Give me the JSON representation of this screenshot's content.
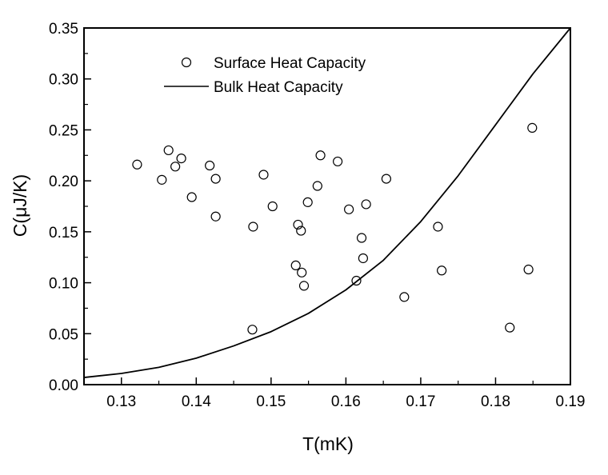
{
  "chart_data": {
    "type": "scatter",
    "xlabel": "T(mK)",
    "ylabel": "C(μJ/K)",
    "xlim": [
      0.125,
      0.19
    ],
    "ylim": [
      0.0,
      0.35
    ],
    "xticks": [
      "0.13",
      "0.14",
      "0.15",
      "0.16",
      "0.17",
      "0.18",
      "0.19"
    ],
    "yticks": [
      "0.00",
      "0.05",
      "0.10",
      "0.15",
      "0.20",
      "0.25",
      "0.30",
      "0.35"
    ],
    "grid": false,
    "legend_position": "top-left",
    "series": [
      {
        "name": "Surface Heat Capacity",
        "marker": "open-circle",
        "color": "#000000",
        "points": [
          {
            "x": 0.1321,
            "y": 0.216
          },
          {
            "x": 0.1354,
            "y": 0.201
          },
          {
            "x": 0.1363,
            "y": 0.23
          },
          {
            "x": 0.1372,
            "y": 0.214
          },
          {
            "x": 0.138,
            "y": 0.222
          },
          {
            "x": 0.1394,
            "y": 0.184
          },
          {
            "x": 0.1418,
            "y": 0.215
          },
          {
            "x": 0.1426,
            "y": 0.202
          },
          {
            "x": 0.1426,
            "y": 0.165
          },
          {
            "x": 0.1476,
            "y": 0.155
          },
          {
            "x": 0.1475,
            "y": 0.054
          },
          {
            "x": 0.149,
            "y": 0.206
          },
          {
            "x": 0.1502,
            "y": 0.175
          },
          {
            "x": 0.1536,
            "y": 0.157
          },
          {
            "x": 0.154,
            "y": 0.151
          },
          {
            "x": 0.1533,
            "y": 0.117
          },
          {
            "x": 0.1541,
            "y": 0.11
          },
          {
            "x": 0.1544,
            "y": 0.097
          },
          {
            "x": 0.1549,
            "y": 0.179
          },
          {
            "x": 0.1562,
            "y": 0.195
          },
          {
            "x": 0.1566,
            "y": 0.225
          },
          {
            "x": 0.1589,
            "y": 0.219
          },
          {
            "x": 0.1604,
            "y": 0.172
          },
          {
            "x": 0.1614,
            "y": 0.102
          },
          {
            "x": 0.1621,
            "y": 0.144
          },
          {
            "x": 0.1623,
            "y": 0.124
          },
          {
            "x": 0.1627,
            "y": 0.177
          },
          {
            "x": 0.1654,
            "y": 0.202
          },
          {
            "x": 0.1678,
            "y": 0.086
          },
          {
            "x": 0.1723,
            "y": 0.155
          },
          {
            "x": 0.1728,
            "y": 0.112
          },
          {
            "x": 0.1819,
            "y": 0.056
          },
          {
            "x": 0.1844,
            "y": 0.113
          },
          {
            "x": 0.1849,
            "y": 0.252
          }
        ]
      },
      {
        "name": "Bulk Heat Capacity",
        "marker": "line",
        "color": "#000000",
        "points": [
          {
            "x": 0.125,
            "y": 0.007
          },
          {
            "x": 0.13,
            "y": 0.011
          },
          {
            "x": 0.135,
            "y": 0.017
          },
          {
            "x": 0.14,
            "y": 0.026
          },
          {
            "x": 0.145,
            "y": 0.038
          },
          {
            "x": 0.15,
            "y": 0.052
          },
          {
            "x": 0.155,
            "y": 0.07
          },
          {
            "x": 0.16,
            "y": 0.093
          },
          {
            "x": 0.165,
            "y": 0.122
          },
          {
            "x": 0.17,
            "y": 0.16
          },
          {
            "x": 0.175,
            "y": 0.205
          },
          {
            "x": 0.18,
            "y": 0.255
          },
          {
            "x": 0.185,
            "y": 0.305
          },
          {
            "x": 0.19,
            "y": 0.35
          }
        ]
      }
    ]
  }
}
